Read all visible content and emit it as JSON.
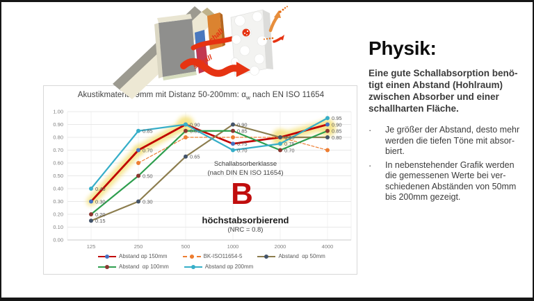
{
  "illustration": {
    "schall_upper": "schall",
    "schall_lower": "schall"
  },
  "chart": {
    "title_main": "Akustikmaterial 9mm mit Distanz 50-200mm: α",
    "title_sub": "w",
    "title_tail": " nach EN ISO 11654"
  },
  "chart_data": {
    "type": "line",
    "title": "Akustikmaterial 9mm mit Distanz 50-200mm: αw nach EN ISO 11654",
    "categories": [
      "125",
      "250",
      "500",
      "1000",
      "2000",
      "4000"
    ],
    "xlabel": "",
    "ylabel": "",
    "ylim": [
      0.0,
      1.0
    ],
    "ytick_step": 0.1,
    "grid": true,
    "legend_position": "bottom",
    "series": [
      {
        "name": "Abstand αp 150mm",
        "color": "#C00000",
        "marker_color": "#4472C4",
        "style": "solid",
        "width": 2.8,
        "values": [
          0.3,
          0.7,
          0.9,
          0.75,
          0.8,
          0.9
        ]
      },
      {
        "name": "BK-ISO11654-5",
        "color": "#ED7D31",
        "marker_color": "#ED7D31",
        "style": "dashed",
        "width": 1.2,
        "values": [
          null,
          0.6,
          0.8,
          0.8,
          0.8,
          0.7
        ]
      },
      {
        "name": "Abstand  αp 50mm",
        "color": "#8C7D4E",
        "marker_color": "#44546A",
        "style": "solid",
        "width": 2.2,
        "values": [
          0.15,
          0.3,
          0.65,
          0.9,
          0.8,
          0.8
        ]
      },
      {
        "name": "Abstand  αp 100mm",
        "color": "#2E9E4E",
        "marker_color": "#8B3630",
        "style": "solid",
        "width": 2.2,
        "values": [
          0.2,
          0.5,
          0.85,
          0.85,
          0.7,
          0.85
        ]
      },
      {
        "name": "Abstand αp 200mm",
        "color": "#36AEC8",
        "marker_color": "#36AEC8",
        "style": "solid",
        "width": 2.2,
        "values": [
          0.4,
          0.85,
          0.9,
          0.7,
          0.75,
          0.95
        ]
      }
    ],
    "point_labels": [
      {
        "cat": 0,
        "value": "0.40"
      },
      {
        "cat": 0,
        "value": "0.30"
      },
      {
        "cat": 0,
        "value": "0.20"
      },
      {
        "cat": 0,
        "value": "0.15"
      },
      {
        "cat": 1,
        "value": "0.85"
      },
      {
        "cat": 1,
        "value": "0.70"
      },
      {
        "cat": 1,
        "value": "0.50"
      },
      {
        "cat": 1,
        "value": "0.30"
      },
      {
        "cat": 2,
        "value": "0.90"
      },
      {
        "cat": 2,
        "value": "0.85"
      },
      {
        "cat": 2,
        "value": "0.65"
      },
      {
        "cat": 3,
        "value": "0.90"
      },
      {
        "cat": 3,
        "value": "0.85"
      },
      {
        "cat": 3,
        "value": "0.75"
      },
      {
        "cat": 3,
        "value": "0.70"
      },
      {
        "cat": 4,
        "value": "0.80"
      },
      {
        "cat": 4,
        "value": "0.75"
      },
      {
        "cat": 4,
        "value": "0.70"
      },
      {
        "cat": 5,
        "value": "0.95"
      },
      {
        "cat": 5,
        "value": "0.90"
      },
      {
        "cat": 5,
        "value": "0.85"
      },
      {
        "cat": 5,
        "value": "0.80"
      }
    ],
    "highlights": {
      "color": "#F3DF74",
      "segments": [
        [
          [
            0,
            0.3
          ],
          [
            1,
            0.7
          ]
        ],
        [
          [
            1,
            0.7
          ],
          [
            2,
            0.9
          ]
        ],
        [
          [
            4,
            0.8
          ],
          [
            5,
            0.9
          ]
        ]
      ],
      "blobs": [
        [
          2,
          0.9
        ],
        [
          4,
          0.8
        ],
        [
          5,
          0.87
        ]
      ]
    },
    "annotations": {
      "class_label_line1": "Schallabsorberklasse",
      "class_label_line2": "(nach DIN EN ISO 11654)",
      "class_letter": "B",
      "class_desc": "höchstabsorbierend",
      "class_nrc": "(NRC = 0.8)"
    }
  },
  "side_panel": {
    "heading": "Physik:",
    "intro_lines": [
      "Eine gute Schallabsorption benö-",
      "tigt einen Abstand (Hohlraum)",
      "zwischen Absorber und einer",
      "schallharten Fläche."
    ],
    "bullets": [
      {
        "marker": "·",
        "lines": [
          "Je größer der Abstand, desto mehr",
          "werden die tiefen Töne mit absor-",
          "biert."
        ]
      },
      {
        "marker": "·",
        "lines": [
          "In nebenstehender Grafik werden",
          "die gemessenen Werte bei ver-",
          "schiedenen Abständen von 50mm",
          "bis 200mm gezeigt."
        ]
      }
    ]
  }
}
